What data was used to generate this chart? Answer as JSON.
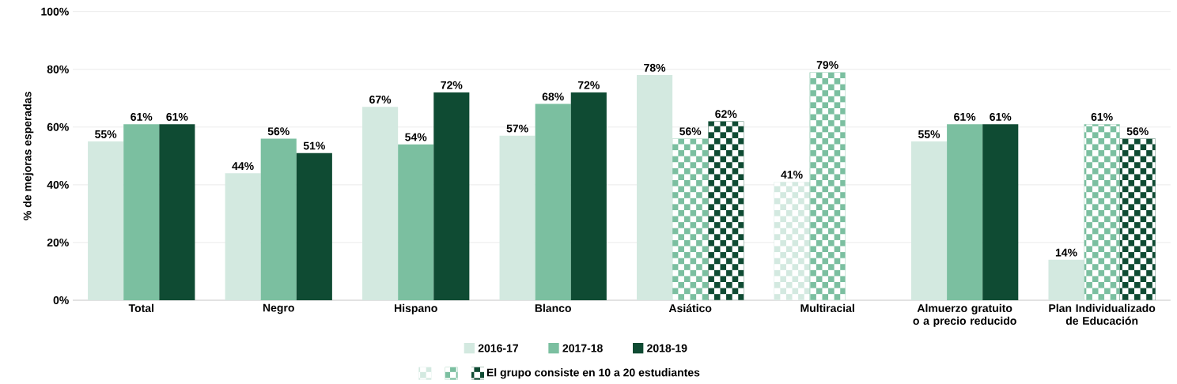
{
  "chart_data": {
    "type": "bar",
    "ylabel": "% de mejoras esperadas",
    "categories": [
      "Total",
      "Negro",
      "Hispano",
      "Blanco",
      "Asiático",
      "Multiracial",
      "Almuerzo gratuito o a precio reducido",
      "Plan Individualizado de Educación"
    ],
    "ylim": [
      0,
      100
    ],
    "yticks": [
      {
        "value": 0,
        "label": "0%"
      },
      {
        "value": 20,
        "label": "20%"
      },
      {
        "value": 40,
        "label": "40%"
      },
      {
        "value": 60,
        "label": "60%"
      },
      {
        "value": 80,
        "label": "80%"
      },
      {
        "value": 100,
        "label": "100%"
      }
    ],
    "grid": "y",
    "legend": "bottom",
    "series": [
      {
        "name": "2016-17",
        "color": "#d3e9e0",
        "values": [
          55,
          44,
          67,
          57,
          78,
          null,
          55,
          14
        ],
        "value_labels": [
          "55%",
          "44%",
          "67%",
          "57%",
          "78%",
          null,
          "55%",
          "14%"
        ]
      },
      {
        "name": "2017-18",
        "color": "#7bbfa0",
        "values": [
          61,
          56,
          54,
          68,
          null,
          null,
          61,
          null
        ],
        "value_labels": [
          "61%",
          "56%",
          "54%",
          "68%",
          null,
          null,
          "61%",
          null
        ]
      },
      {
        "name": "2018-19",
        "color": "#0f4b33",
        "values": [
          61,
          51,
          72,
          72,
          null,
          null,
          61,
          null
        ],
        "value_labels": [
          "61%",
          "51%",
          "72%",
          "72%",
          null,
          null,
          "61%",
          null
        ]
      },
      {
        "color": "#d3e9e0",
        "line_style": "dotted",
        "values": [
          null,
          null,
          null,
          null,
          null,
          41,
          null,
          null
        ],
        "value_labels": [
          null,
          null,
          null,
          null,
          null,
          "41%",
          null,
          null
        ]
      },
      {
        "color": "#7bbfa0",
        "line_style": "dotted",
        "values": [
          null,
          null,
          null,
          null,
          56,
          79,
          null,
          61
        ],
        "value_labels": [
          null,
          null,
          null,
          null,
          "56%",
          "79%",
          null,
          "61%"
        ]
      },
      {
        "name": "El grupo consiste en 10 a 20 estudiantes",
        "color": "#0f4b33",
        "line_style": "dotted",
        "values": [
          null,
          null,
          null,
          null,
          62,
          null,
          null,
          56
        ],
        "value_labels": [
          null,
          null,
          null,
          null,
          "62%",
          null,
          null,
          "56%"
        ]
      }
    ]
  }
}
